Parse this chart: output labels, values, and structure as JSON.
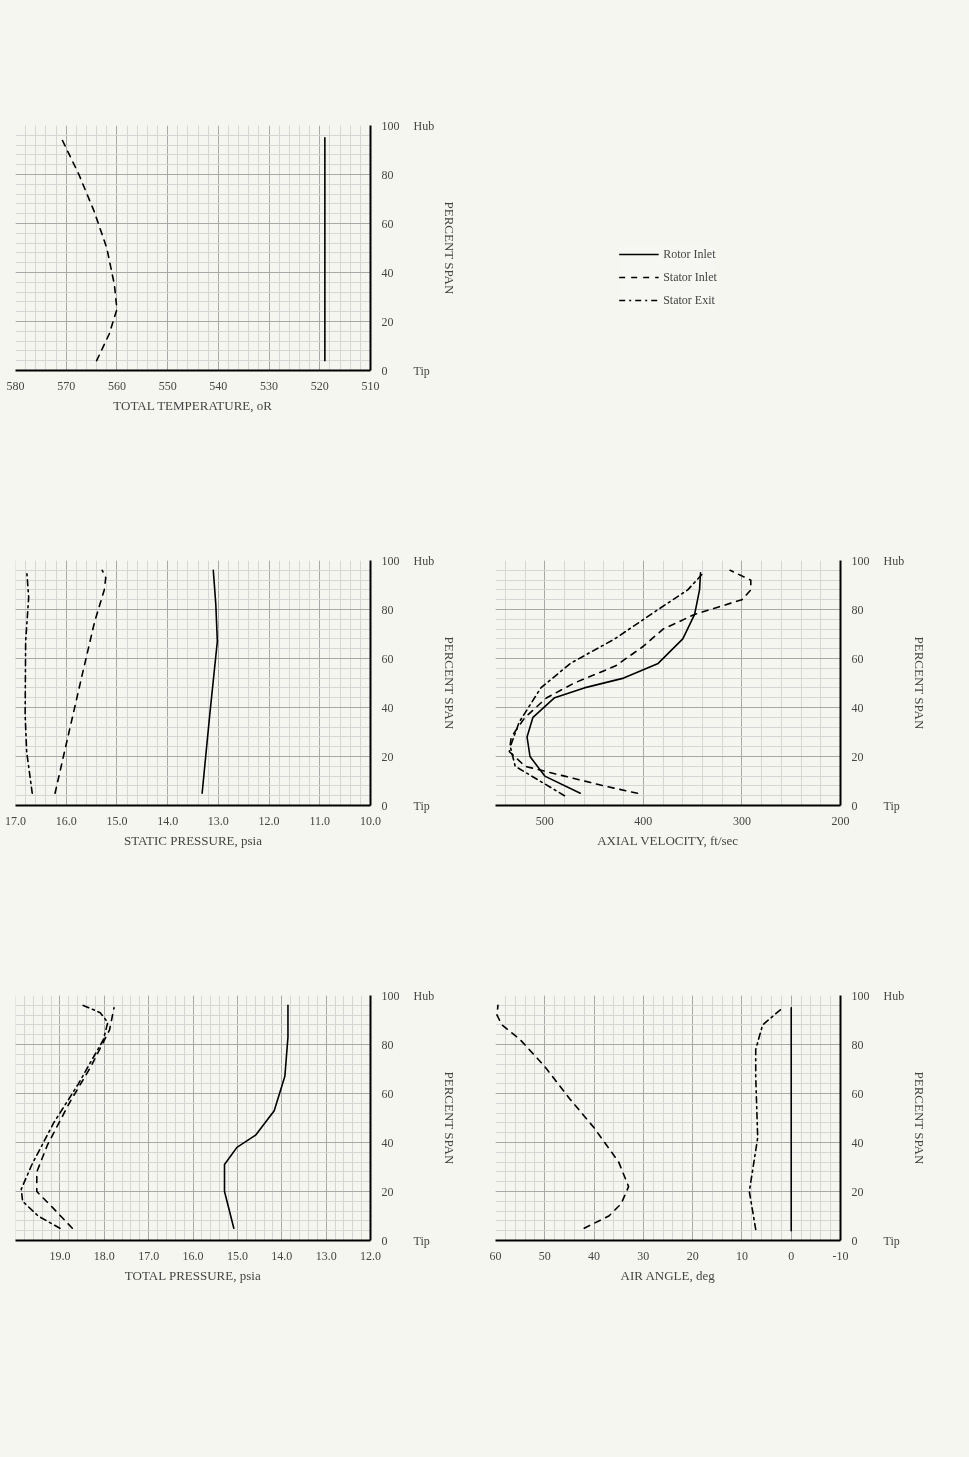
{
  "chart_data": [
    {
      "type": "line",
      "xlabel": "TOTAL TEMPERATURE, oR",
      "ylabel": "PERCENT SPAN",
      "annotations": [
        "Tip",
        "Hub"
      ],
      "xlim": [
        580,
        510
      ],
      "xticks": [
        580,
        570,
        560,
        550,
        540,
        530,
        520,
        510
      ],
      "ylim": [
        0,
        100
      ],
      "yticks": [
        0,
        20,
        40,
        60,
        80,
        100
      ],
      "grid": true,
      "series": [
        {
          "color": "#000000",
          "line_style": "solid",
          "x": [
            519,
            519
          ],
          "values": [
            4,
            95
          ]
        },
        {
          "color": "#000000",
          "line_style": "dashed",
          "x": [
            564,
            561.5,
            560,
            560.5,
            562,
            564.5,
            567.5,
            571
          ],
          "values": [
            4,
            15,
            25,
            35,
            50,
            65,
            80,
            95
          ]
        }
      ]
    },
    {
      "type": "line",
      "xlabel": "STATIC PRESSURE, psia",
      "ylabel": "PERCENT SPAN",
      "annotations": [
        "Tip",
        "Hub"
      ],
      "xlim": [
        17.0,
        10.0
      ],
      "xticks": [
        {
          "value": 17,
          "label": "17.0"
        },
        {
          "value": 16,
          "label": "16.0"
        },
        {
          "value": 15,
          "label": "15.0"
        },
        {
          "value": 14,
          "label": "14.0"
        },
        {
          "value": 13,
          "label": "13.0"
        },
        {
          "value": 12,
          "label": "12.0"
        },
        {
          "value": 11,
          "label": "11.0"
        },
        {
          "value": 10,
          "label": "10.0"
        }
      ],
      "ylim": [
        0,
        100
      ],
      "yticks": [
        0,
        20,
        40,
        60,
        80,
        100
      ],
      "grid": true,
      "series": [
        {
          "color": "#000000",
          "line_style": "solid",
          "x": [
            13.32,
            13.17,
            13.02,
            13.05,
            13.1
          ],
          "values": [
            5,
            37,
            67,
            82,
            96
          ]
        },
        {
          "color": "#000000",
          "line_style": "dashed",
          "x": [
            16.22,
            16.0,
            15.7,
            15.44,
            15.25,
            15.22,
            15.29
          ],
          "values": [
            5,
            25,
            52,
            75,
            88,
            93,
            96
          ]
        },
        {
          "color": "#000000",
          "line_style": "dashdot",
          "x": [
            16.67,
            16.78,
            16.81,
            16.8,
            16.74,
            16.78
          ],
          "values": [
            5,
            22,
            37,
            67,
            85,
            96
          ]
        }
      ]
    },
    {
      "type": "line",
      "xlabel": "TOTAL PRESSURE, psia",
      "ylabel": "PERCENT SPAN",
      "annotations": [
        "Tip",
        "Hub"
      ],
      "xlim": [
        20.0,
        12.0
      ],
      "xticks": [
        {
          "value": 19,
          "label": "19.0"
        },
        {
          "value": 18,
          "label": "18.0"
        },
        {
          "value": 17,
          "label": "17.0"
        },
        {
          "value": 16,
          "label": "16.0"
        },
        {
          "value": 15,
          "label": "15.0"
        },
        {
          "value": 14,
          "label": "14.0"
        },
        {
          "value": 13,
          "label": "13.0"
        },
        {
          "value": 12,
          "label": "12.0"
        }
      ],
      "ylim": [
        0,
        100
      ],
      "yticks": [
        0,
        20,
        40,
        60,
        80,
        100
      ],
      "grid": true,
      "series": [
        {
          "color": "#000000",
          "line_style": "solid",
          "x": [
            15.08,
            15.29,
            15.29,
            15.01,
            14.59,
            14.17,
            13.93,
            13.86,
            13.86
          ],
          "values": [
            5,
            20,
            31,
            38,
            43,
            53,
            67,
            83,
            96
          ]
        },
        {
          "color": "#000000",
          "line_style": "dashed",
          "x": [
            18.72,
            19.14,
            19.52,
            19.52,
            19.28,
            18.79,
            18.3,
            17.88,
            17.78
          ],
          "values": [
            5,
            13,
            20,
            28,
            39,
            56,
            71,
            86,
            95
          ]
        },
        {
          "color": "#000000",
          "line_style": "dashdot",
          "x": [
            19.0,
            19.49,
            19.84,
            19.87,
            19.63,
            19.14,
            18.58,
            18.02,
            17.92,
            18.09,
            18.48
          ],
          "values": [
            5,
            10,
            16,
            21,
            31,
            48,
            64,
            82,
            89,
            93,
            96
          ]
        }
      ]
    },
    {
      "type": "line",
      "xlabel": "AXIAL VELOCITY, ft/sec",
      "ylabel": "PERCENT SPAN",
      "annotations": [
        "Tip",
        "Hub"
      ],
      "xlim": [
        550,
        200
      ],
      "xticks": [
        500,
        400,
        300,
        200
      ],
      "ylim": [
        0,
        100
      ],
      "yticks": [
        0,
        20,
        40,
        60,
        80,
        100
      ],
      "grid": true,
      "legend": "top",
      "series": [
        {
          "name": "Rotor Inlet",
          "color": "#000000",
          "line_style": "solid",
          "x": [
            464,
            500,
            515,
            518,
            512,
            490,
            460,
            420,
            385,
            360,
            348,
            343,
            342
          ],
          "values": [
            5,
            12,
            20,
            28,
            36,
            44,
            48,
            52,
            58,
            68,
            78,
            88,
            95
          ]
        },
        {
          "name": "Stator Inlet",
          "color": "#000000",
          "line_style": "dashed",
          "x": [
            406,
            440,
            480,
            520,
            536,
            534,
            520,
            498,
            470,
            428,
            400,
            380,
            348,
            300,
            291,
            291,
            312
          ],
          "values": [
            5,
            8,
            12,
            16,
            22,
            28,
            36,
            44,
            50,
            57,
            65,
            72,
            78,
            84,
            88,
            92,
            96
          ]
        },
        {
          "name": "Stator Exit",
          "color": "#000000",
          "line_style": "dashdot",
          "x": [
            480,
            505,
            530,
            535,
            526,
            504,
            474,
            429,
            385,
            355,
            339
          ],
          "values": [
            4,
            10,
            16,
            24,
            34,
            48,
            58,
            68,
            80,
            88,
            95
          ]
        }
      ]
    },
    {
      "type": "line",
      "xlabel": "AIR ANGLE, deg",
      "ylabel": "PERCENT SPAN",
      "annotations": [
        "Tip",
        "Hub"
      ],
      "xlim": [
        60,
        -10
      ],
      "xticks": [
        60,
        50,
        40,
        30,
        20,
        10,
        0,
        -10
      ],
      "ylim": [
        0,
        100
      ],
      "yticks": [
        0,
        20,
        40,
        60,
        80,
        100
      ],
      "grid": true,
      "series": [
        {
          "color": "#000000",
          "line_style": "solid",
          "x": [
            0,
            0
          ],
          "values": [
            4,
            95
          ]
        },
        {
          "color": "#000000",
          "line_style": "dashed",
          "x": [
            42,
            37,
            34.5,
            33,
            35,
            40,
            45,
            50,
            55,
            58.7,
            59.7,
            59.5
          ],
          "values": [
            5,
            10,
            15,
            22,
            32,
            46,
            58,
            71,
            82,
            88,
            92,
            96
          ]
        },
        {
          "color": "#000000",
          "line_style": "dashdot",
          "x": [
            7.2,
            8.5,
            6.8,
            7.2,
            7.2,
            5.8,
            1.7
          ],
          "values": [
            4.5,
            20,
            42,
            67,
            78,
            88,
            95
          ]
        }
      ]
    }
  ]
}
